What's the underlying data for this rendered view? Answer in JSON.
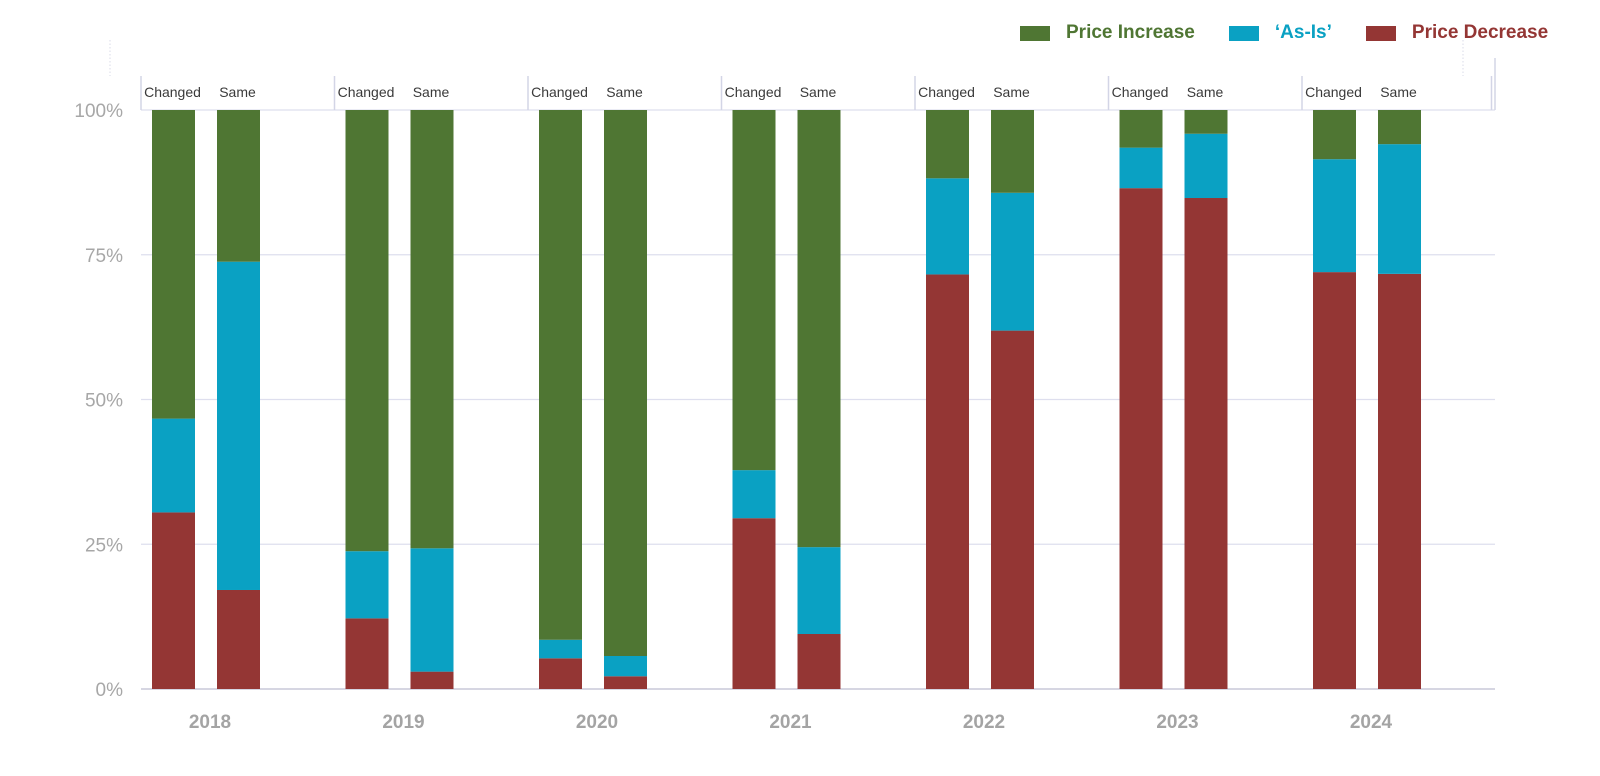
{
  "legend": {
    "items": [
      {
        "label": "Price Increase",
        "color": "#4f7633",
        "text_color": "#4f7633"
      },
      {
        "label": "‘As-Is’",
        "color": "#0aa1c3",
        "text_color": "#0aa1c3"
      },
      {
        "label": "Price Decrease",
        "color": "#943634",
        "text_color": "#943634"
      }
    ]
  },
  "chart_data": {
    "type": "bar",
    "stacked": true,
    "normalized_percent": true,
    "categories": [
      "2018",
      "2019",
      "2020",
      "2021",
      "2022",
      "2023",
      "2024"
    ],
    "subcategories": [
      "Changed",
      "Same"
    ],
    "yticks": [
      "0%",
      "25%",
      "50%",
      "75%",
      "100%"
    ],
    "ylim": [
      0,
      100
    ],
    "grid": true,
    "legend_position": "top-right",
    "series": [
      {
        "name": "Price Decrease",
        "color": "#943634",
        "values": [
          [
            30.5,
            17.1
          ],
          [
            12.2,
            3.0
          ],
          [
            5.3,
            2.2
          ],
          [
            29.5,
            9.5
          ],
          [
            71.6,
            61.9
          ],
          [
            86.5,
            84.8
          ],
          [
            72.0,
            71.7
          ]
        ]
      },
      {
        "name": "‘As-Is’",
        "color": "#0aa1c3",
        "values": [
          [
            16.2,
            56.7
          ],
          [
            11.6,
            21.3
          ],
          [
            3.2,
            3.5
          ],
          [
            8.3,
            15.0
          ],
          [
            16.6,
            23.8
          ],
          [
            7.0,
            11.1
          ],
          [
            19.5,
            22.4
          ]
        ]
      },
      {
        "name": "Price Increase",
        "color": "#4f7633",
        "values": [
          [
            53.3,
            26.2
          ],
          [
            76.2,
            75.7
          ],
          [
            91.5,
            94.3
          ],
          [
            62.2,
            75.5
          ],
          [
            11.8,
            14.3
          ],
          [
            6.5,
            4.1
          ],
          [
            8.5,
            5.9
          ]
        ]
      }
    ]
  }
}
